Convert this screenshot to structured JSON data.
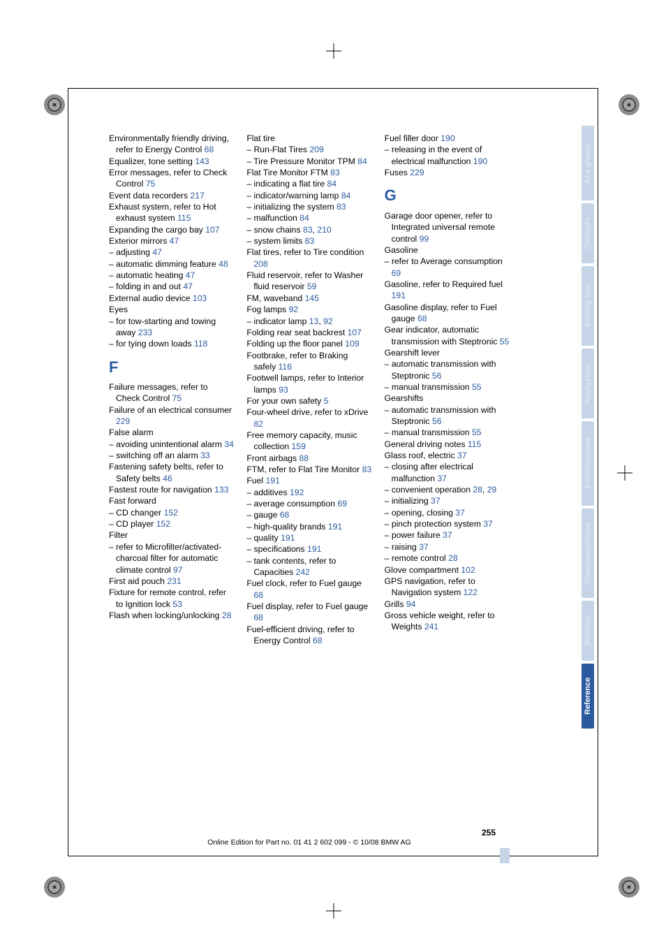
{
  "page_number": "255",
  "footer_line": "Online Edition for Part no. 01 41 2 602 099 - © 10/08 BMW AG",
  "link_color": "#2b5aa0",
  "tabs": [
    {
      "label": "At a glance",
      "active": false
    },
    {
      "label": "Controls",
      "active": false
    },
    {
      "label": "Driving tips",
      "active": false
    },
    {
      "label": "Navigation",
      "active": false
    },
    {
      "label": "Entertainment",
      "active": false
    },
    {
      "label": "Communications",
      "active": false
    },
    {
      "label": "Mobility",
      "active": false
    },
    {
      "label": "Reference",
      "active": true
    }
  ],
  "col1": [
    {
      "t": "Environmentally friendly driving, refer to Energy Control ",
      "p": "68"
    },
    {
      "t": "Equalizer, tone setting ",
      "p": "143"
    },
    {
      "t": "Error messages, refer to Check Control ",
      "p": "75"
    },
    {
      "t": "Event data recorders ",
      "p": "217"
    },
    {
      "t": "Exhaust system, refer to Hot exhaust system ",
      "p": "115"
    },
    {
      "t": "Expanding the cargo bay ",
      "p": "107"
    },
    {
      "t": "Exterior mirrors ",
      "p": "47"
    },
    {
      "t": "– adjusting ",
      "p": "47"
    },
    {
      "t": "– automatic dimming feature ",
      "p": "48"
    },
    {
      "t": "– automatic heating ",
      "p": "47"
    },
    {
      "t": "– folding in and out ",
      "p": "47"
    },
    {
      "t": "External audio device ",
      "p": "103"
    },
    {
      "t": "Eyes",
      "p": ""
    },
    {
      "t": "– for tow-starting and towing away ",
      "p": "233"
    },
    {
      "t": "– for tying down loads ",
      "p": "118"
    }
  ],
  "section_f": "F",
  "col1b": [
    {
      "t": "Failure messages, refer to Check Control ",
      "p": "75"
    },
    {
      "t": "Failure of an electrical consumer ",
      "p": "229"
    },
    {
      "t": "False alarm",
      "p": ""
    },
    {
      "t": "– avoiding unintentional alarm ",
      "p": "34"
    },
    {
      "t": "– switching off an alarm ",
      "p": "33"
    },
    {
      "t": "Fastening safety belts, refer to Safety belts ",
      "p": "46"
    },
    {
      "t": "Fastest route for navigation ",
      "p": "133"
    },
    {
      "t": "Fast forward",
      "p": ""
    },
    {
      "t": "– CD changer ",
      "p": "152"
    },
    {
      "t": "– CD player ",
      "p": "152"
    },
    {
      "t": "Filter",
      "p": ""
    },
    {
      "t": "– refer to Microfilter/activated-charcoal filter for automatic climate control ",
      "p": "97"
    },
    {
      "t": "First aid pouch ",
      "p": "231"
    },
    {
      "t": "Fixture for remote control, refer to Ignition lock ",
      "p": "53"
    },
    {
      "t": "Flash when locking/unlocking ",
      "p": "28"
    }
  ],
  "col2": [
    {
      "t": "Flat tire",
      "p": ""
    },
    {
      "t": "– Run-Flat Tires ",
      "p": "209"
    },
    {
      "t": "– Tire Pressure Monitor TPM ",
      "p": "84"
    },
    {
      "t": "Flat Tire Monitor FTM ",
      "p": "83"
    },
    {
      "t": "– indicating a flat tire ",
      "p": "84"
    },
    {
      "t": "– indicator/warning lamp ",
      "p": "84"
    },
    {
      "t": "– initializing the system ",
      "p": "83"
    },
    {
      "t": "– malfunction ",
      "p": "84"
    },
    {
      "t": "– snow chains ",
      "p": "83",
      "p2": "210"
    },
    {
      "t": "– system limits ",
      "p": "83"
    },
    {
      "t": "Flat tires, refer to Tire condition ",
      "p": "208"
    },
    {
      "t": "Fluid reservoir, refer to Washer fluid reservoir ",
      "p": "59"
    },
    {
      "t": "FM, waveband ",
      "p": "145"
    },
    {
      "t": "Fog lamps ",
      "p": "92"
    },
    {
      "t": "– indicator lamp ",
      "p": "13",
      "p2": "92"
    },
    {
      "t": "Folding rear seat backrest ",
      "p": "107"
    },
    {
      "t": "Folding up the floor panel ",
      "p": "109"
    },
    {
      "t": "Footbrake, refer to Braking safely ",
      "p": "116"
    },
    {
      "t": "Footwell lamps, refer to Interior lamps ",
      "p": "93"
    },
    {
      "t": "For your own safety ",
      "p": "5"
    },
    {
      "t": "Four-wheel drive, refer to xDrive ",
      "p": "82"
    },
    {
      "t": "Free memory capacity, music collection ",
      "p": "159"
    },
    {
      "t": "Front airbags ",
      "p": "88"
    },
    {
      "t": "FTM, refer to Flat Tire Monitor ",
      "p": "83"
    },
    {
      "t": "Fuel ",
      "p": "191"
    },
    {
      "t": "– additives ",
      "p": "192"
    },
    {
      "t": "– average consumption ",
      "p": "69"
    },
    {
      "t": "– gauge ",
      "p": "68"
    },
    {
      "t": "– high-quality brands ",
      "p": "191"
    },
    {
      "t": "– quality ",
      "p": "191"
    },
    {
      "t": "– specifications ",
      "p": "191"
    },
    {
      "t": "– tank contents, refer to Capacities ",
      "p": "242"
    },
    {
      "t": "Fuel clock, refer to Fuel gauge ",
      "p": "68"
    },
    {
      "t": "Fuel display, refer to Fuel gauge ",
      "p": "68"
    },
    {
      "t": "Fuel-efficient driving, refer to Energy Control ",
      "p": "68"
    }
  ],
  "col3a": [
    {
      "t": "Fuel filler door ",
      "p": "190"
    },
    {
      "t": "– releasing in the event of electrical malfunction ",
      "p": "190"
    },
    {
      "t": "Fuses ",
      "p": "229"
    }
  ],
  "section_g": "G",
  "col3b": [
    {
      "t": "Garage door opener, refer to Integrated universal remote control ",
      "p": "99"
    },
    {
      "t": "Gasoline",
      "p": ""
    },
    {
      "t": "– refer to Average consumption ",
      "p": "69"
    },
    {
      "t": "Gasoline, refer to Required fuel ",
      "p": "191"
    },
    {
      "t": "Gasoline display, refer to Fuel gauge ",
      "p": "68"
    },
    {
      "t": "Gear indicator, automatic transmission with Steptronic ",
      "p": "55"
    },
    {
      "t": "Gearshift lever",
      "p": ""
    },
    {
      "t": "– automatic transmission with Steptronic ",
      "p": "56"
    },
    {
      "t": "– manual transmission ",
      "p": "55"
    },
    {
      "t": "Gearshifts",
      "p": ""
    },
    {
      "t": "– automatic transmission with Steptronic ",
      "p": "56"
    },
    {
      "t": "– manual transmission ",
      "p": "55"
    },
    {
      "t": "General driving notes ",
      "p": "115"
    },
    {
      "t": "Glass roof, electric ",
      "p": "37"
    },
    {
      "t": "– closing after electrical malfunction ",
      "p": "37"
    },
    {
      "t": "– convenient operation ",
      "p": "28",
      "p2": "29"
    },
    {
      "t": "– initializing ",
      "p": "37"
    },
    {
      "t": "– opening, closing ",
      "p": "37"
    },
    {
      "t": "– pinch protection system ",
      "p": "37"
    },
    {
      "t": "– power failure ",
      "p": "37"
    },
    {
      "t": "– raising ",
      "p": "37"
    },
    {
      "t": "– remote control ",
      "p": "28"
    },
    {
      "t": "Glove compartment ",
      "p": "102"
    },
    {
      "t": "GPS navigation, refer to Navigation system ",
      "p": "122"
    },
    {
      "t": "Grills ",
      "p": "94"
    },
    {
      "t": "Gross vehicle weight, refer to Weights ",
      "p": "241"
    }
  ]
}
